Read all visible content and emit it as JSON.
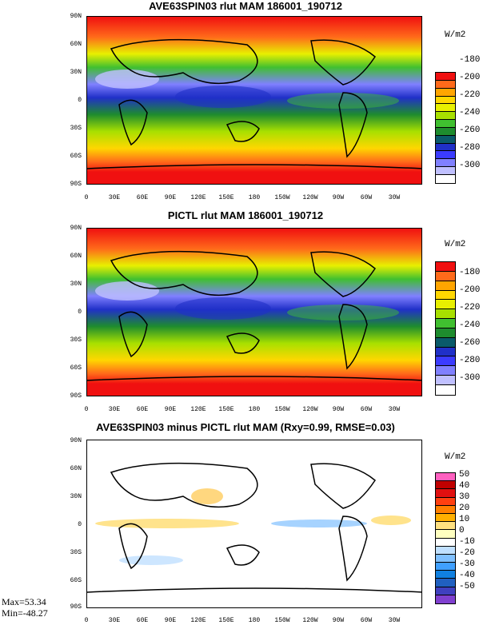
{
  "units_label": "W/m2",
  "lat_ticks": [
    "90N",
    "60N",
    "30N",
    "0",
    "30S",
    "60S",
    "90S"
  ],
  "lon_ticks": [
    "0",
    "30E",
    "60E",
    "90E",
    "120E",
    "150E",
    "180",
    "150W",
    "120W",
    "90W",
    "60W",
    "30W"
  ],
  "panels": [
    {
      "title": "AVE63SPIN03 rlut MAM 186001_190712",
      "colorbar": {
        "colors": [
          "#f01010",
          "#ff6a1a",
          "#ffa500",
          "#ffd700",
          "#e8f000",
          "#a8e000",
          "#40c030",
          "#1e8c2e",
          "#0a5a6a",
          "#2030c8",
          "#3b3bff",
          "#8080ff",
          "#c0c0ff",
          "#ffffff"
        ],
        "labels": [
          "-180",
          "-200",
          "-220",
          "-240",
          "-260",
          "-280",
          "-300"
        ]
      }
    },
    {
      "title": "PICTL rlut MAM 186001_190712",
      "colorbar": {
        "colors": [
          "#f01010",
          "#ff6a1a",
          "#ffa500",
          "#ffd700",
          "#e8f000",
          "#a8e000",
          "#40c030",
          "#1e8c2e",
          "#0a5a6a",
          "#2030c8",
          "#3b3bff",
          "#8080ff",
          "#c0c0ff",
          "#ffffff"
        ],
        "labels": [
          "-180",
          "-200",
          "-220",
          "-240",
          "-260",
          "-280",
          "-300"
        ]
      }
    },
    {
      "title": "AVE63SPIN03 minus PICTL rlut MAM (Rxy=0.99, RMSE=0.03)",
      "colorbar": {
        "colors": [
          "#ff60c0",
          "#c00000",
          "#e01010",
          "#ff4010",
          "#ff8000",
          "#ffb000",
          "#ffe080",
          "#ffffc0",
          "#ffffff",
          "#c0e0ff",
          "#80c0ff",
          "#40a0ff",
          "#1080e0",
          "#2060c0",
          "#4040c0",
          "#8040d0"
        ],
        "labels": [
          "50",
          "40",
          "30",
          "20",
          "10",
          "0",
          "-10",
          "-20",
          "-30",
          "-40",
          "-50"
        ]
      },
      "stats": {
        "max": "Max=53.34",
        "min": "Min=-48.27"
      }
    }
  ]
}
